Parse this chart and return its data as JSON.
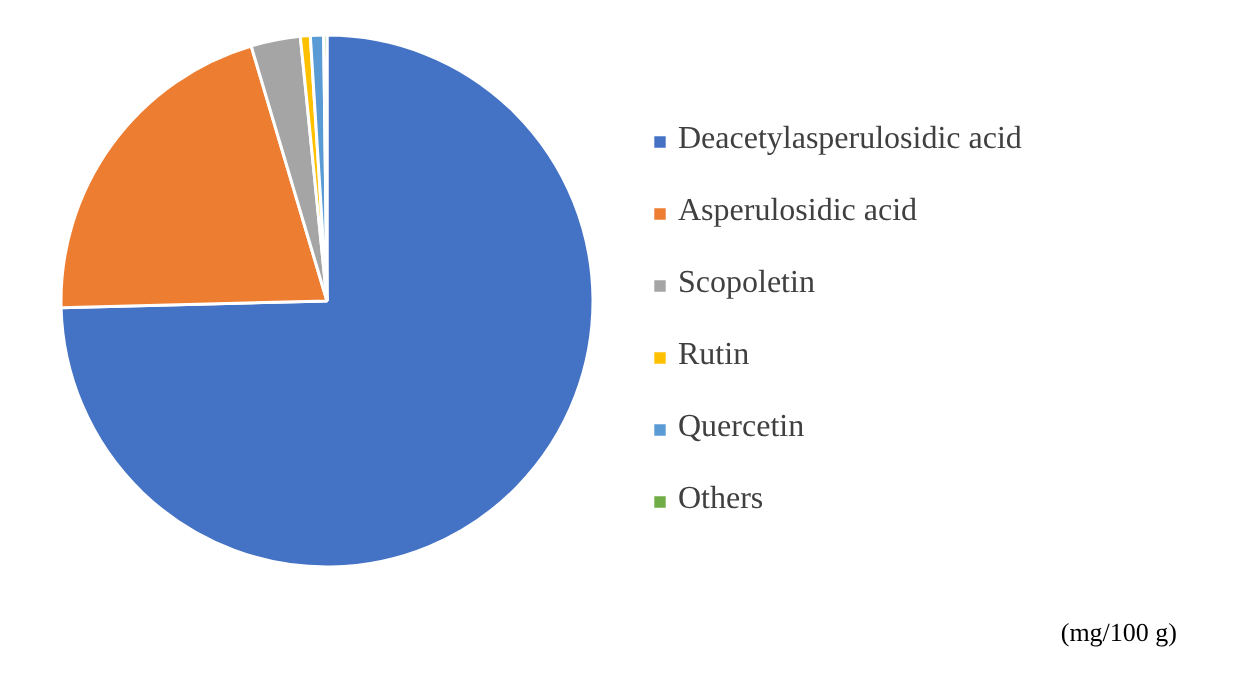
{
  "chart_data": {
    "type": "pie",
    "categories": [
      "Deacetylasperulosidic acid",
      "Asperulosidic acid",
      "Scopoletin",
      "Rutin",
      "Quercetin",
      "Others"
    ],
    "values": [
      74.6,
      20.8,
      3.0,
      0.6,
      0.8,
      0.2
    ],
    "colors": [
      "#4472c4",
      "#ed7d31",
      "#a5a5a5",
      "#ffc000",
      "#5b9bd5",
      "#70ad47"
    ],
    "legend": "right",
    "annotations": [
      "(mg/100 g)"
    ]
  }
}
